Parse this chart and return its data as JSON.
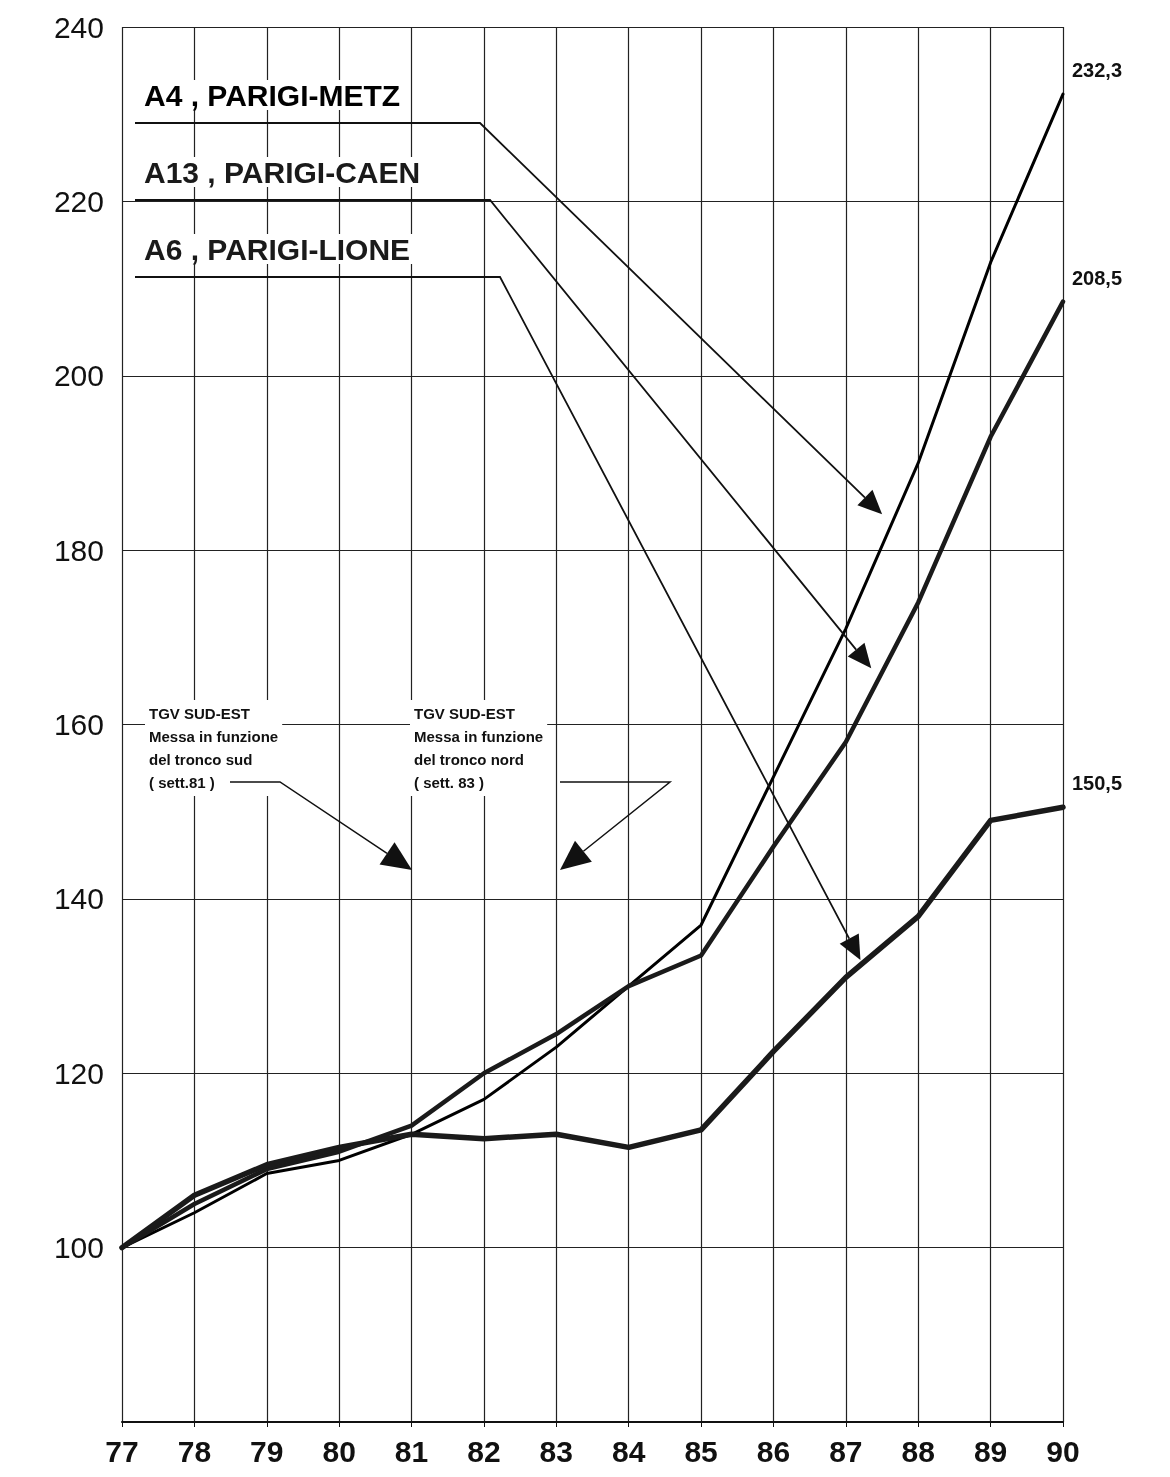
{
  "chart_data": {
    "type": "line",
    "categories": [
      "77",
      "78",
      "79",
      "80",
      "81",
      "82",
      "83",
      "84",
      "85",
      "86",
      "87",
      "88",
      "89",
      "90"
    ],
    "series": [
      {
        "name": "A4 , PARIGI-METZ",
        "color": "#000000",
        "values": [
          100,
          104,
          108.5,
          110,
          113,
          117,
          123,
          130,
          137,
          154,
          171,
          190,
          213,
          232.3
        ],
        "value_labels": [
          null,
          null,
          null,
          null,
          null,
          null,
          null,
          null,
          null,
          null,
          null,
          null,
          null,
          "232,3"
        ]
      },
      {
        "name": "A13 , PARIGI-CAEN",
        "color": "#1a1a1a",
        "values": [
          100,
          105,
          109,
          111,
          114,
          120,
          124.5,
          130,
          133.5,
          146,
          158,
          174,
          193,
          208.5
        ],
        "value_labels": [
          null,
          null,
          null,
          null,
          null,
          null,
          null,
          null,
          null,
          null,
          null,
          null,
          null,
          "208,5"
        ]
      },
      {
        "name": "A6 , PARIGI-LIONE",
        "color": "#1a1a1a",
        "values": [
          100,
          106,
          109.5,
          111.5,
          113,
          112.5,
          113,
          111.5,
          113.5,
          122.5,
          131,
          138,
          149,
          150.5
        ],
        "value_labels": [
          null,
          null,
          null,
          null,
          null,
          null,
          null,
          null,
          null,
          null,
          null,
          null,
          null,
          "150,5"
        ]
      }
    ],
    "ylim": [
      80,
      240
    ],
    "yticks": [
      100,
      120,
      140,
      160,
      180,
      200,
      220,
      240
    ],
    "grid": true,
    "legend": false,
    "marker": "none",
    "line_style": "solid",
    "annotations": [
      "TGV SUD-EST\nMessa in funzione\ndel tronco sud\n( sett.81 )",
      "TGV SUD-EST\nMessa in funzione\ndel tronco nord\n( sett. 83 )"
    ]
  }
}
